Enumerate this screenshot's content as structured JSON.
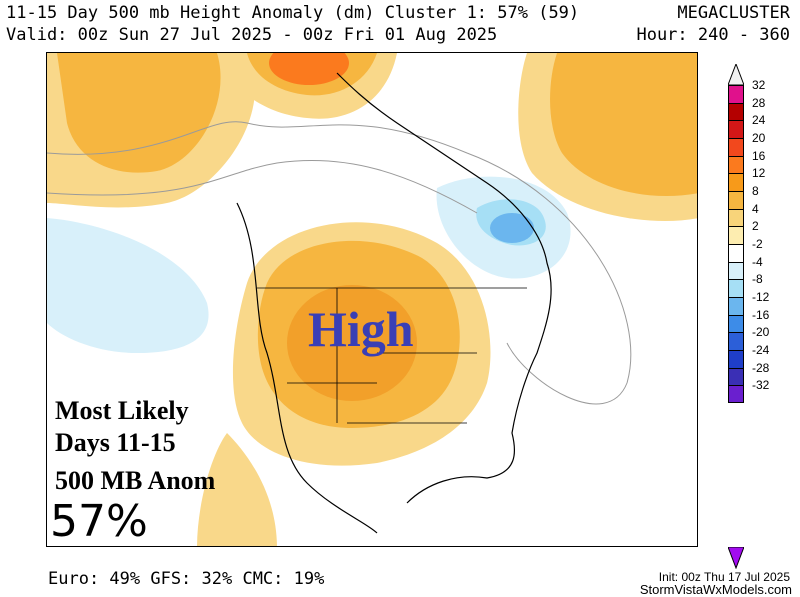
{
  "header": {
    "title": "11-15 Day 500 mb Height Anomaly (dm) Cluster 1: 57% (59)",
    "brand": "MEGACLUSTER",
    "valid": "Valid: 00z Sun 27 Jul 2025 - 00z Fri 01 Aug 2025",
    "hour": "Hour: 240 - 360"
  },
  "map": {
    "high_label": "High",
    "overlay_line1": "Most Likely",
    "overlay_line2": "Days 11-15",
    "overlay_line3": "500 MB Anom",
    "overlay_percent": "57%"
  },
  "colorbar": {
    "labels": [
      "32",
      "28",
      "24",
      "20",
      "16",
      "12",
      "8",
      "4",
      "2",
      "-2",
      "-4",
      "-8",
      "-12",
      "-16",
      "-20",
      "-24",
      "-28",
      "-32"
    ],
    "colors": [
      "#f0f0f0",
      "#e0118c",
      "#b40000",
      "#d31717",
      "#f2481d",
      "#fb7a1e",
      "#f79a1a",
      "#f6b640",
      "#f8d47a",
      "#fdedb0",
      "#ffffff",
      "#d8f0fa",
      "#a6dff5",
      "#6bb6ee",
      "#3d8ce8",
      "#2c5fd8",
      "#1f3ec9",
      "#3a2fb5",
      "#6a1fcf",
      "#a20bf0"
    ]
  },
  "footer": {
    "models": "Euro: 49% GFS: 32% CMC: 19%",
    "init": "Init: 00z Thu 17 Jul 2025",
    "site": "StormVistaWxModels.com"
  }
}
